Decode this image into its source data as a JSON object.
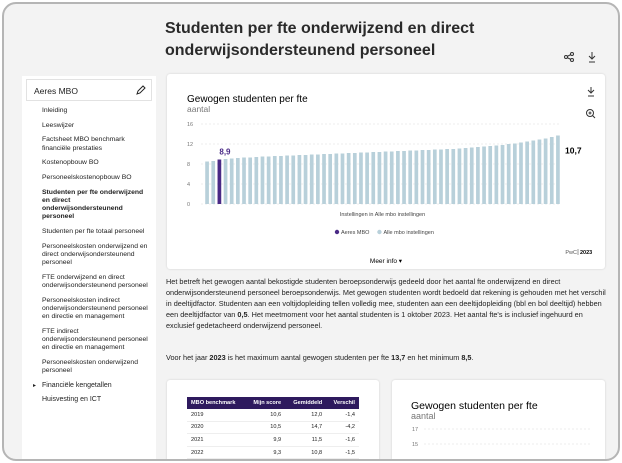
{
  "header": {
    "title": "Studenten per fte onderwijzend en direct onderwijsondersteunend personeel"
  },
  "sidebar": {
    "selector": "Aeres MBO",
    "items": [
      "Inleiding",
      "Leeswijzer",
      "Factsheet MBO benchmark financiële prestaties",
      "Kostenopbouw BO",
      "Personeelskostenopbouw BO",
      "Studenten per fte onderwijzend en direct onderwijsondersteunend personeel",
      "Studenten per fte totaal personeel",
      "Personeelskosten onderwijzend en direct onderwijsondersteunend personeel",
      "FTE onderwijzend en direct onderwijsondersteunend personeel",
      "Personeelskosten indirect onderwijsondersteunend personeel en directie en management",
      "FTE indirect onderwijsondersteunend personeel en directie en management",
      "Personeelskosten onderwijzend personeel"
    ],
    "groups": [
      "Financiële kengetallen",
      "Huisvesting en ICT"
    ]
  },
  "chart_data": {
    "type": "bar",
    "title": "Gewogen studenten per fte",
    "subtitle": "aantal",
    "x_label": "Instellingen in Alle mbo instellingen",
    "ylim": [
      0,
      16
    ],
    "yticks": [
      0,
      4,
      8,
      12,
      16
    ],
    "grid": true,
    "series": [
      {
        "name": "Aeres MBO",
        "color": "#4a2a86",
        "values": [
          null,
          null,
          8.9,
          null,
          null,
          null,
          null,
          null,
          null,
          null,
          null,
          null,
          null,
          null,
          null,
          null,
          null,
          null,
          null,
          null,
          null,
          null,
          null,
          null,
          null,
          null,
          null,
          null,
          null,
          null,
          null,
          null,
          null,
          null,
          null,
          null,
          null,
          null,
          null,
          null,
          null,
          null,
          null,
          null,
          null,
          null,
          null,
          null,
          null,
          null,
          null,
          null,
          null,
          null,
          null,
          null,
          null,
          null
        ],
        "value_labels": [
          null,
          null,
          "8,9",
          null,
          null,
          null,
          null,
          null,
          null,
          null,
          null,
          null,
          null,
          null,
          null,
          null,
          null,
          null,
          null,
          null,
          null,
          null,
          null,
          null,
          null,
          null,
          null,
          null,
          null,
          null,
          null,
          null,
          null,
          null,
          null,
          null,
          null,
          null,
          null,
          null,
          null,
          null,
          null,
          null,
          null,
          null,
          null,
          null,
          null,
          null,
          null,
          null,
          null,
          null,
          null,
          null,
          null,
          null
        ]
      },
      {
        "name": "Alle mbo instellingen",
        "color": "#b8d0da",
        "values": [
          8.5,
          8.6,
          null,
          9.0,
          9.1,
          9.2,
          9.3,
          9.3,
          9.4,
          9.5,
          9.5,
          9.6,
          9.6,
          9.7,
          9.7,
          9.8,
          9.8,
          9.9,
          9.9,
          10.0,
          10.0,
          10.1,
          10.1,
          10.2,
          10.2,
          10.3,
          10.3,
          10.4,
          10.4,
          10.5,
          10.5,
          10.6,
          10.6,
          10.7,
          10.7,
          10.8,
          10.8,
          10.9,
          10.9,
          11.0,
          11.0,
          11.1,
          11.2,
          11.3,
          11.4,
          11.5,
          11.6,
          11.7,
          11.8,
          12.0,
          12.1,
          12.3,
          12.5,
          12.7,
          12.9,
          13.1,
          13.4,
          13.7
        ]
      }
    ],
    "average": {
      "value": 10.7,
      "label": "10,7"
    },
    "more": "Meer info ▾",
    "source": "PwC",
    "year": "2023"
  },
  "text": {
    "paragraph1": [
      "Het betreft het gewogen aantal bekostigde studenten beroepsonderwijs gedeeld door het aantal fte onderwijzend en direct onderwijsondersteunend personeel beroepsonderwijs. Met gewogen studenten wordt bedoeld dat rekening is gehouden met het verschil in deeltijdfactor. Studenten aan een voltijdopleiding tellen volledig mee, studenten aan een deeltijdopleiding (bbl en bol deeltijd) hebben een deeltijdfactor van ",
      "0,5",
      ". Het meetmoment voor het aantal studenten is 1 oktober 2023. Het aantal fte's is inclusief ingehuurd en exclusief gedetacheerd onderwijzend personeel."
    ],
    "paragraph2": [
      "Voor het jaar ",
      "2023",
      " is het maximum aantal gewogen studenten per fte ",
      "13,7",
      " en het minimum ",
      "8,5",
      "."
    ]
  },
  "table": {
    "header": [
      "MBO benchmark",
      "Mijn score",
      "Gemiddeld",
      "Verschil"
    ],
    "rows": [
      [
        "2019",
        "10,6",
        "12,0",
        "-1,4"
      ],
      [
        "2020",
        "10,5",
        "14,7",
        "-4,2"
      ],
      [
        "2021",
        "9,9",
        "11,5",
        "-1,6"
      ],
      [
        "2022",
        "9,3",
        "10,8",
        "-1,5"
      ]
    ]
  },
  "chart2": {
    "title": "Gewogen studenten per fte",
    "subtitle": "aantal",
    "yticks": [
      17,
      15
    ]
  }
}
